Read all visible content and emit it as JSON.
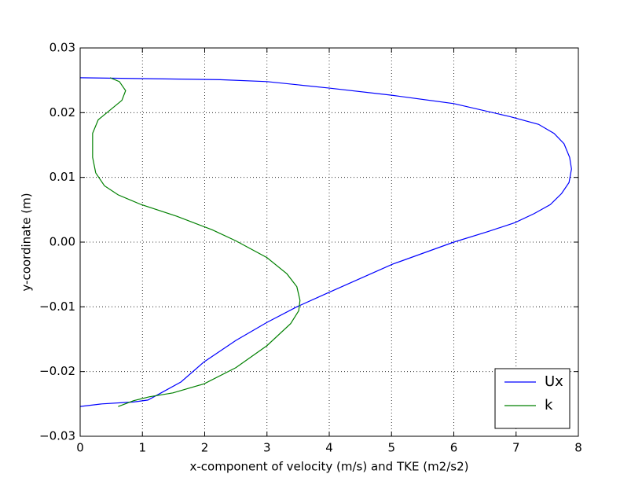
{
  "chart_data": {
    "type": "line",
    "xlabel": "x-component of velocity (m/s) and TKE (m2/s2)",
    "ylabel": "y-coordinate (m)",
    "xlim": [
      0,
      8
    ],
    "xticks": [
      0,
      1,
      2,
      3,
      4,
      5,
      6,
      7,
      8
    ],
    "ylim": [
      -0.03,
      0.03
    ],
    "yticks": [
      {
        "value": -0.03,
        "label": "−0.03"
      },
      {
        "value": -0.02,
        "label": "−0.02"
      },
      {
        "value": -0.01,
        "label": "−0.01"
      },
      {
        "value": 0,
        "label": "0.00"
      },
      0.01,
      0.02,
      0.03
    ],
    "grid": true,
    "legend": "lower right",
    "series": [
      {
        "name": "Ux",
        "color": "#0000ff",
        "x": [
          0,
          2.25,
          3.0,
          4.0,
          5.0,
          6.0,
          6.9,
          7.36,
          7.61,
          7.77,
          7.86,
          7.89,
          7.85,
          7.73,
          7.55,
          7.29,
          6.98,
          6.54,
          6.0,
          5.02,
          4.01,
          3.48,
          3.0,
          2.5,
          1.99,
          1.62,
          1.3,
          1.09,
          0.86,
          0.35,
          0
        ],
        "y": [
          0.0254,
          0.0251,
          0.0248,
          0.0238,
          0.0227,
          0.0214,
          0.0194,
          0.0182,
          0.0168,
          0.0152,
          0.0131,
          0.0113,
          0.0092,
          0.0075,
          0.0058,
          0.0044,
          0.003,
          0.0016,
          0.0,
          -0.0034,
          -0.0077,
          -0.01,
          -0.0124,
          -0.0152,
          -0.0185,
          -0.0216,
          -0.0233,
          -0.0244,
          -0.0247,
          -0.025,
          -0.0254
        ]
      },
      {
        "name": "k",
        "color": "#008000",
        "x": [
          0.48,
          0.63,
          0.73,
          0.67,
          0.48,
          0.29,
          0.2,
          0.2,
          0.25,
          0.39,
          0.61,
          0.98,
          1.55,
          2.12,
          2.5,
          3.0,
          3.32,
          3.48,
          3.53,
          3.51,
          3.38,
          3.0,
          2.5,
          1.99,
          1.49,
          1.11,
          0.86,
          0.61
        ],
        "y": [
          0.0254,
          0.0248,
          0.0234,
          0.0219,
          0.0204,
          0.0189,
          0.0168,
          0.0131,
          0.0107,
          0.0087,
          0.0073,
          0.0058,
          0.004,
          0.0019,
          0.0002,
          -0.0024,
          -0.0049,
          -0.0069,
          -0.009,
          -0.0106,
          -0.0126,
          -0.016,
          -0.0194,
          -0.0219,
          -0.0233,
          -0.0239,
          -0.0245,
          -0.0254
        ]
      }
    ]
  }
}
